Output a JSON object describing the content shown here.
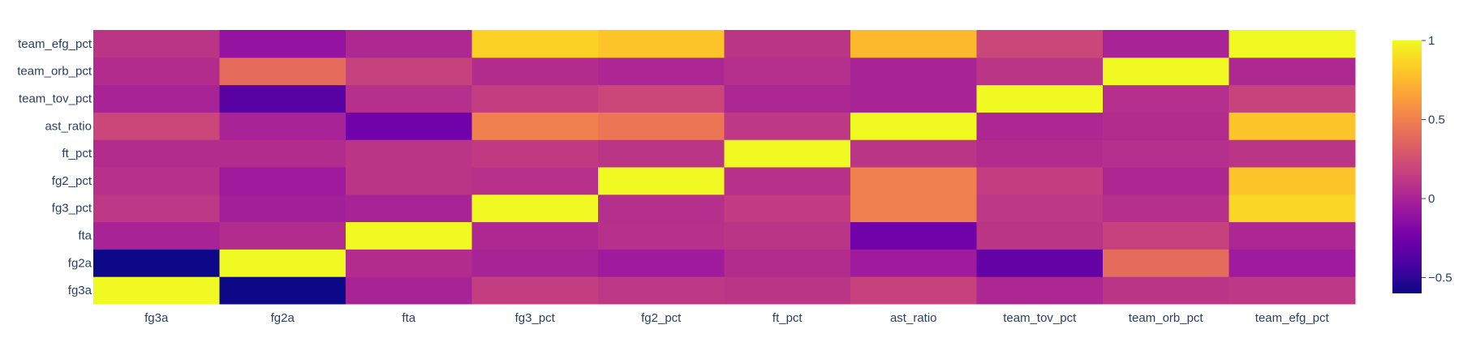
{
  "chart_data": {
    "type": "heatmap",
    "title": "",
    "xlabel": "",
    "ylabel": "",
    "x": [
      "fg3a",
      "fg2a",
      "fta",
      "fg3_pct",
      "fg2_pct",
      "ft_pct",
      "ast_ratio",
      "team_tov_pct",
      "team_orb_pct",
      "team_efg_pct"
    ],
    "y": [
      "fg3a",
      "fg2a",
      "fta",
      "fg3_pct",
      "fg2_pct",
      "ft_pct",
      "ast_ratio",
      "team_tov_pct",
      "team_orb_pct",
      "team_efg_pct"
    ],
    "z": [
      [
        1.0,
        -0.65,
        0.0,
        0.15,
        0.12,
        0.1,
        0.17,
        0.02,
        0.1,
        0.12
      ],
      [
        -0.65,
        1.0,
        0.05,
        0.0,
        -0.05,
        0.05,
        -0.05,
        -0.3,
        0.4,
        -0.05
      ],
      [
        0.0,
        0.05,
        1.0,
        0.03,
        0.08,
        0.1,
        -0.25,
        0.1,
        0.17,
        0.02
      ],
      [
        0.12,
        -0.03,
        0.0,
        1.0,
        0.07,
        0.14,
        0.5,
        0.12,
        0.07,
        0.87
      ],
      [
        0.08,
        -0.05,
        0.1,
        0.08,
        1.0,
        0.08,
        0.5,
        0.15,
        0.02,
        0.8
      ],
      [
        0.05,
        0.05,
        0.1,
        0.13,
        0.1,
        1.0,
        0.1,
        0.05,
        0.07,
        0.1
      ],
      [
        0.2,
        0.0,
        -0.25,
        0.5,
        0.45,
        0.12,
        1.0,
        0.02,
        0.05,
        0.8
      ],
      [
        0.0,
        -0.35,
        0.07,
        0.15,
        0.2,
        0.02,
        0.0,
        1.0,
        0.07,
        0.18
      ],
      [
        0.05,
        0.4,
        0.17,
        0.05,
        0.02,
        0.07,
        0.0,
        0.1,
        1.0,
        0.03
      ],
      [
        0.1,
        -0.1,
        0.03,
        0.85,
        0.8,
        0.1,
        0.75,
        0.2,
        0.0,
        1.0
      ]
    ],
    "zmin": -0.6,
    "zmax": 1.0,
    "colorscale": "plasma",
    "colorbar": {
      "ticks": [
        -0.5,
        0,
        0.5,
        1
      ],
      "tick_labels": [
        "−0.5",
        "0",
        "0.5",
        "1"
      ]
    },
    "grid": false,
    "legend": "colorbar-right"
  }
}
